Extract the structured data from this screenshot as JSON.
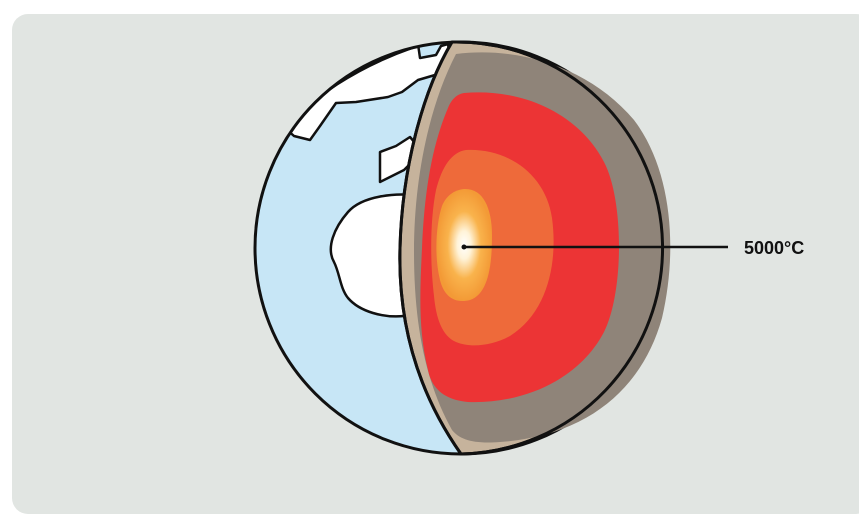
{
  "diagram": {
    "core_temperature_label": "5000°C"
  },
  "colors": {
    "background": "#e1e5e2",
    "ocean": "#c7e6f6",
    "continent": "#ffffff",
    "crust": "#c6b39c",
    "mantle": "#8f8479",
    "outer_core": "#ec3435",
    "inner_core": "#ee6a3a",
    "center": "#f6a23a",
    "outline": "#111111"
  }
}
